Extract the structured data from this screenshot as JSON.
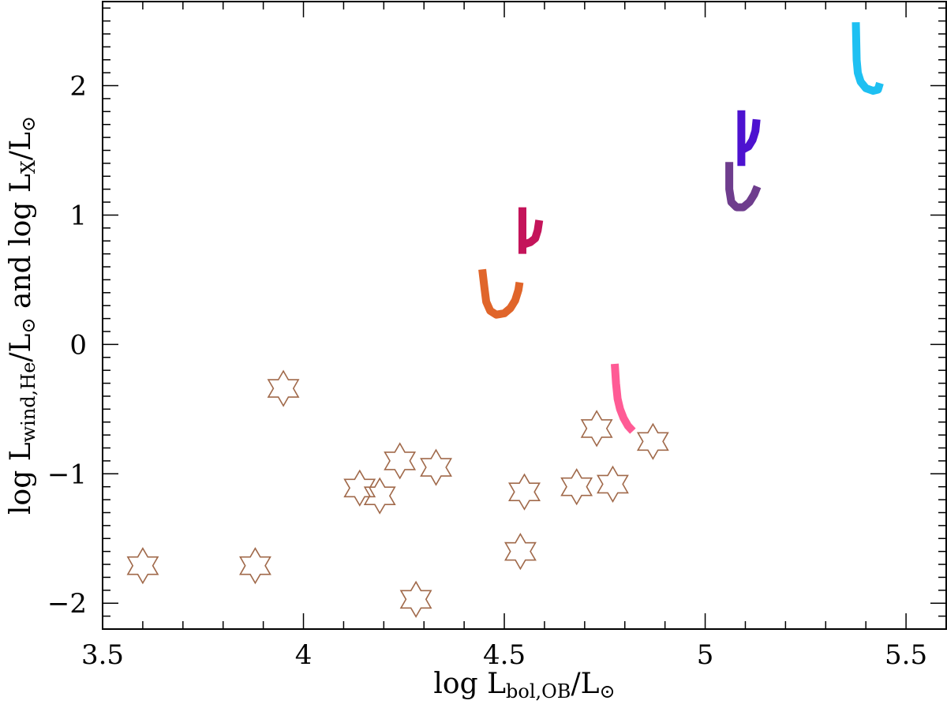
{
  "chart_data": {
    "type": "scatter",
    "xlabel": {
      "prefix": "log  L",
      "sub": "bol,OB",
      "suffix": "/L",
      "sym": "⊙"
    },
    "ylabel": {
      "prefix": "log  L",
      "sub1": "wind,He",
      "mid1": "/L",
      "sym1": "⊙",
      "mid2": "  and  log  L",
      "sub2": "X",
      "mid3": "/L",
      "sym2": "⊙"
    },
    "xlim": [
      3.5,
      5.6
    ],
    "ylim": [
      -2.2,
      2.65
    ],
    "x_ticks": [
      "3.5",
      "4",
      "4.5",
      "5",
      "5.5"
    ],
    "y_ticks": [
      "2",
      "1",
      "0",
      "−1",
      "−2"
    ],
    "x_tick_values": [
      3.5,
      4.0,
      4.5,
      5.0,
      5.5
    ],
    "y_tick_values": [
      2,
      1,
      0,
      -1,
      -2
    ],
    "grid": false,
    "star_color": "#a0694a",
    "stars": [
      {
        "x": 3.6,
        "y": -1.71
      },
      {
        "x": 3.88,
        "y": -1.71
      },
      {
        "x": 3.95,
        "y": -0.34
      },
      {
        "x": 4.14,
        "y": -1.11
      },
      {
        "x": 4.19,
        "y": -1.17
      },
      {
        "x": 4.24,
        "y": -0.9
      },
      {
        "x": 4.28,
        "y": -1.97
      },
      {
        "x": 4.33,
        "y": -0.95
      },
      {
        "x": 4.54,
        "y": -1.6
      },
      {
        "x": 4.55,
        "y": -1.14
      },
      {
        "x": 4.68,
        "y": -1.1
      },
      {
        "x": 4.73,
        "y": -0.65
      },
      {
        "x": 4.77,
        "y": -1.08
      },
      {
        "x": 4.87,
        "y": -0.75
      }
    ],
    "tracks": [
      {
        "color": "#e0652a",
        "points": [
          [
            4.445,
            0.58
          ],
          [
            4.45,
            0.45
          ],
          [
            4.455,
            0.33
          ],
          [
            4.465,
            0.26
          ],
          [
            4.48,
            0.23
          ],
          [
            4.5,
            0.24
          ],
          [
            4.515,
            0.28
          ],
          [
            4.527,
            0.34
          ],
          [
            4.535,
            0.42
          ],
          [
            4.538,
            0.48
          ]
        ]
      },
      {
        "color": "#c4145a",
        "points": [
          [
            4.545,
            0.7
          ],
          [
            4.545,
            1.06
          ]
        ]
      },
      {
        "color": "#c4145a",
        "points": [
          [
            4.545,
            0.77
          ],
          [
            4.565,
            0.79
          ],
          [
            4.577,
            0.82
          ],
          [
            4.583,
            0.88
          ],
          [
            4.587,
            0.96
          ]
        ]
      },
      {
        "color": "#ff5b95",
        "points": [
          [
            4.775,
            -0.15
          ],
          [
            4.778,
            -0.3
          ],
          [
            4.782,
            -0.42
          ],
          [
            4.788,
            -0.5
          ],
          [
            4.797,
            -0.57
          ],
          [
            4.808,
            -0.63
          ],
          [
            4.82,
            -0.67
          ]
        ]
      },
      {
        "color": "#6e3d8d",
        "points": [
          [
            5.06,
            1.41
          ],
          [
            5.06,
            1.2
          ],
          [
            5.065,
            1.1
          ],
          [
            5.078,
            1.06
          ],
          [
            5.095,
            1.06
          ],
          [
            5.11,
            1.1
          ],
          [
            5.122,
            1.16
          ],
          [
            5.13,
            1.22
          ]
        ]
      },
      {
        "color": "#4d12d0",
        "points": [
          [
            5.09,
            1.38
          ],
          [
            5.09,
            1.81
          ]
        ]
      },
      {
        "color": "#4d12d0",
        "points": [
          [
            5.09,
            1.5
          ],
          [
            5.108,
            1.53
          ],
          [
            5.118,
            1.58
          ],
          [
            5.125,
            1.65
          ],
          [
            5.128,
            1.74
          ]
        ]
      },
      {
        "color": "#1ec0f2",
        "points": [
          [
            5.375,
            2.49
          ],
          [
            5.377,
            2.2
          ],
          [
            5.38,
            2.1
          ],
          [
            5.387,
            2.03
          ],
          [
            5.4,
            1.98
          ],
          [
            5.418,
            1.96
          ],
          [
            5.43,
            1.97
          ],
          [
            5.435,
            2.02
          ]
        ]
      }
    ]
  }
}
